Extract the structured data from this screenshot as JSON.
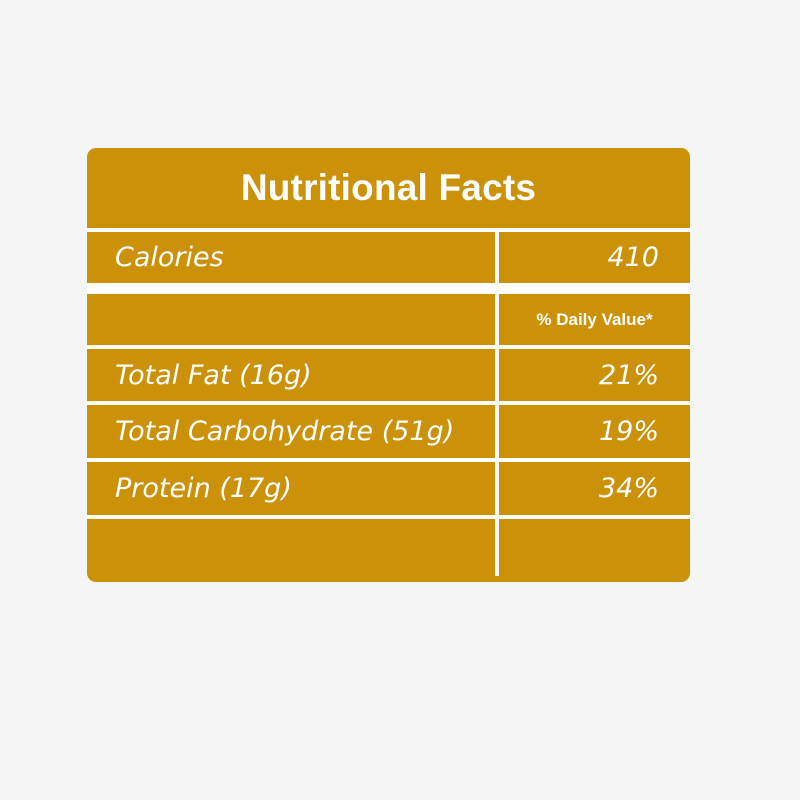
{
  "title": "Nutritional Facts",
  "calories": {
    "label": "Calories",
    "value": "410"
  },
  "daily_value_header": "% Daily Value*",
  "nutrients": [
    {
      "label": "Total Fat (16g)",
      "value": "21%"
    },
    {
      "label": "Total Carbohydrate (51g)",
      "value": "19%"
    },
    {
      "label": "Protein (17g)",
      "value": "34%"
    }
  ],
  "colors": {
    "panel": "#cb9108",
    "text": "#ffffff",
    "background": "#f5f5f5"
  }
}
